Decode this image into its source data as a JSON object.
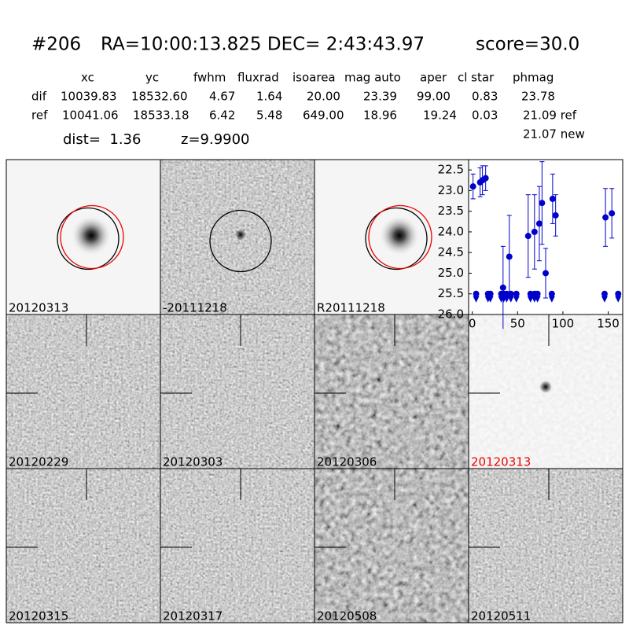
{
  "header": {
    "id": "#206",
    "coords": "RA=10:00:13.825 DEC= 2:43:43.97",
    "score": "score=30.0"
  },
  "table": {
    "columns": [
      "xc",
      "yc",
      "fwhm",
      "fluxrad",
      "isoarea",
      "mag auto",
      "aper",
      "cl star",
      "phmag"
    ],
    "rows": [
      [
        "dif",
        "10039.83",
        "18532.60",
        "4.67",
        "1.64",
        "20.00",
        "23.39",
        "99.00",
        "0.83",
        "23.78"
      ],
      [
        "ref",
        "10041.06",
        "18533.18",
        "6.42",
        "5.48",
        "649.00",
        "18.96",
        "19.24",
        "0.03",
        "21.09 ref"
      ]
    ],
    "extra": "21.07 new"
  },
  "dist": "dist=  1.36",
  "z": "z=9.9900",
  "panels": [
    "20120313",
    "-20111218",
    "R20111218",
    "20120229",
    "20120303",
    "20120306",
    "20120313",
    "20120315",
    "20120317",
    "20120508",
    "20120511"
  ],
  "chart_data": {
    "type": "scatter",
    "xlim": [
      -4,
      166
    ],
    "ylim": [
      26.0,
      22.25
    ],
    "xticks": [
      0,
      50,
      100,
      150
    ],
    "yticks": [
      22.5,
      {
        "value": 23.0,
        "label": "23.0"
      },
      23.5,
      {
        "value": 24.0,
        "label": "24.0"
      },
      24.5,
      {
        "value": 25.0,
        "label": "25.0"
      },
      25.5,
      {
        "value": 26.0,
        "label": "26.0"
      }
    ],
    "series": [
      {
        "color": "#0000cc",
        "x": [
          0.9,
          8.7,
          11.3,
          14.8,
          34,
          40.9,
          61.7,
          68.7,
          74,
          77,
          81,
          88.7,
          92,
          147,
          154
        ],
        "values": [
          22.9,
          22.8,
          22.75,
          22.7,
          25.35,
          24.6,
          24.1,
          24.0,
          23.8,
          23.3,
          25.0,
          23.2,
          23.6,
          23.65,
          23.55
        ],
        "errors": [
          0.3,
          0.35,
          0.35,
          0.3,
          1.0,
          1.0,
          1.0,
          0.9,
          0.9,
          1.0,
          0.6,
          0.6,
          0.5,
          0.7,
          0.6
        ]
      },
      {
        "color": "#0000cc",
        "x": [
          4.3,
          17.4,
          20,
          32,
          34.8,
          38,
          42.6,
          48.7,
          64.3,
          68.7,
          72,
          87.8,
          146,
          161
        ],
        "values": [
          25.5,
          25.5,
          25.5,
          25.5,
          25.5,
          25.5,
          25.5,
          25.5,
          25.5,
          25.5,
          25.5,
          25.5,
          25.5,
          25.5
        ]
      }
    ]
  }
}
